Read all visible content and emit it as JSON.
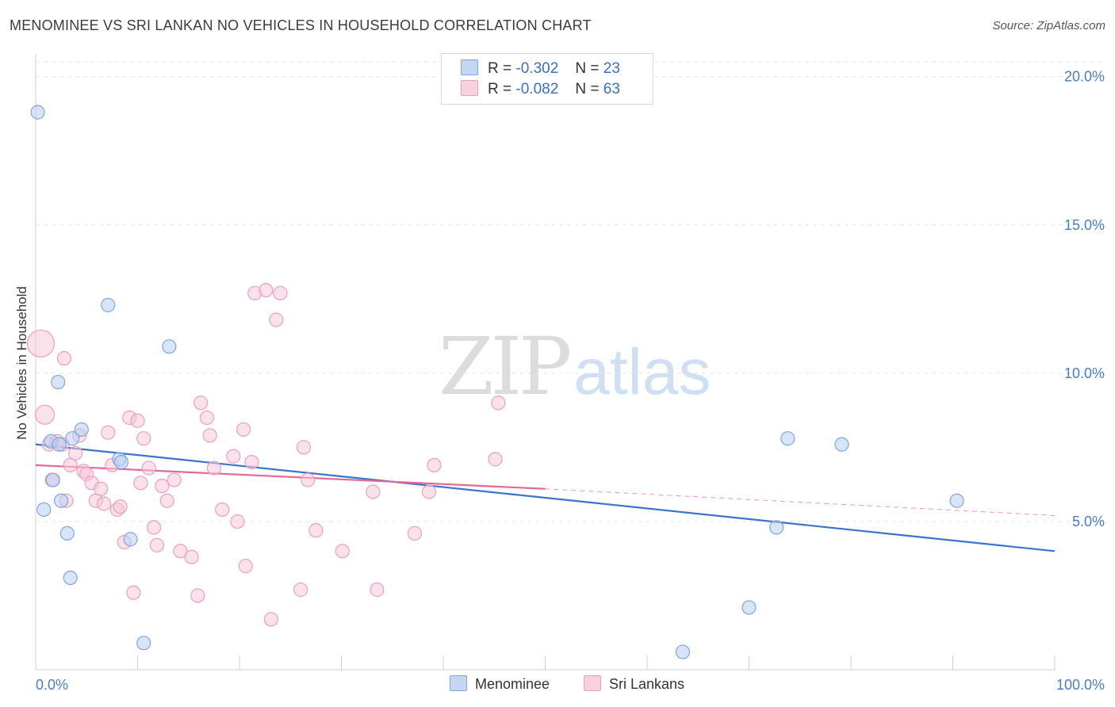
{
  "header": {
    "title": "MENOMINEE VS SRI LANKAN NO VEHICLES IN HOUSEHOLD CORRELATION CHART",
    "source": "Source: ZipAtlas.com"
  },
  "watermark": {
    "zip": "ZIP",
    "atlas": "atlas"
  },
  "legend": {
    "rows": [
      {
        "r_label": "R =",
        "r_value": "-0.302",
        "n_label": "N =",
        "n_value": "23"
      },
      {
        "r_label": "R =",
        "r_value": "-0.082",
        "n_label": "N =",
        "n_value": "63"
      }
    ]
  },
  "colors": {
    "menominee_fill": "#b8d0f2",
    "menominee_stroke": "#7fa6dc",
    "menominee_line": "#3a74d0",
    "srilankan_fill": "#f8c8d8",
    "srilankan_stroke": "#eba0ba",
    "srilankan_line": "#e46a94",
    "tick_color": "#4a7cc7",
    "grid": "#e3e3e3"
  },
  "chart_data": {
    "type": "scatter",
    "title": "MENOMINEE VS SRI LANKAN NO VEHICLES IN HOUSEHOLD CORRELATION CHART",
    "xlabel": "",
    "ylabel": "No Vehicles in Household",
    "xlim": [
      0,
      100
    ],
    "ylim": [
      0,
      20.5
    ],
    "x_tick_labels": [
      "0.0%",
      "100.0%"
    ],
    "y_ticks": [
      5,
      10,
      15,
      20
    ],
    "y_tick_labels": [
      "5.0%",
      "10.0%",
      "15.0%",
      "20.0%"
    ],
    "grid": true,
    "legend_position": "bottom",
    "series": [
      {
        "name": "Menominee",
        "points": [
          [
            0.2,
            18.8
          ],
          [
            0.8,
            5.4
          ],
          [
            1.5,
            7.7
          ],
          [
            1.7,
            6.4
          ],
          [
            2.2,
            9.7
          ],
          [
            2.5,
            5.7
          ],
          [
            3.1,
            4.6
          ],
          [
            3.4,
            3.1
          ],
          [
            3.6,
            7.8
          ],
          [
            4.5,
            8.1
          ],
          [
            7.1,
            12.3
          ],
          [
            8.2,
            7.1
          ],
          [
            8.4,
            7.0
          ],
          [
            9.3,
            4.4
          ],
          [
            10.6,
            0.9
          ],
          [
            13.1,
            10.9
          ],
          [
            73.8,
            7.8
          ],
          [
            79.1,
            7.6
          ],
          [
            90.4,
            5.7
          ],
          [
            72.7,
            4.8
          ],
          [
            70.0,
            2.1
          ],
          [
            63.5,
            0.6
          ],
          [
            2.3,
            7.6
          ]
        ],
        "trend": {
          "x": [
            0,
            100
          ],
          "y": [
            7.6,
            4.0
          ]
        }
      },
      {
        "name": "Sri Lankans",
        "points": [
          [
            0.5,
            11.0
          ],
          [
            0.9,
            8.6
          ],
          [
            1.3,
            7.6
          ],
          [
            1.6,
            6.4
          ],
          [
            2.1,
            7.7
          ],
          [
            2.6,
            7.6
          ],
          [
            2.8,
            10.5
          ],
          [
            3.0,
            5.7
          ],
          [
            3.4,
            6.9
          ],
          [
            3.9,
            7.3
          ],
          [
            4.3,
            7.9
          ],
          [
            4.7,
            6.7
          ],
          [
            5.0,
            6.6
          ],
          [
            5.5,
            6.3
          ],
          [
            5.9,
            5.7
          ],
          [
            6.4,
            6.1
          ],
          [
            6.7,
            5.6
          ],
          [
            7.1,
            8.0
          ],
          [
            7.5,
            6.9
          ],
          [
            8.0,
            5.4
          ],
          [
            8.3,
            5.5
          ],
          [
            8.7,
            4.3
          ],
          [
            9.2,
            8.5
          ],
          [
            9.6,
            2.6
          ],
          [
            10.0,
            8.4
          ],
          [
            10.3,
            6.3
          ],
          [
            10.6,
            7.8
          ],
          [
            11.1,
            6.8
          ],
          [
            11.6,
            4.8
          ],
          [
            11.9,
            4.2
          ],
          [
            12.4,
            6.2
          ],
          [
            12.9,
            5.7
          ],
          [
            13.6,
            6.4
          ],
          [
            14.2,
            4.0
          ],
          [
            15.3,
            3.8
          ],
          [
            15.9,
            2.5
          ],
          [
            16.2,
            9.0
          ],
          [
            16.8,
            8.5
          ],
          [
            17.1,
            7.9
          ],
          [
            17.5,
            6.8
          ],
          [
            18.3,
            5.4
          ],
          [
            19.4,
            7.2
          ],
          [
            19.8,
            5.0
          ],
          [
            20.4,
            8.1
          ],
          [
            20.6,
            3.5
          ],
          [
            21.2,
            7.0
          ],
          [
            21.5,
            12.7
          ],
          [
            22.6,
            12.8
          ],
          [
            23.1,
            1.7
          ],
          [
            23.6,
            11.8
          ],
          [
            24.0,
            12.7
          ],
          [
            26.0,
            2.7
          ],
          [
            26.3,
            7.5
          ],
          [
            26.7,
            6.4
          ],
          [
            27.5,
            4.7
          ],
          [
            30.1,
            4.0
          ],
          [
            33.1,
            6.0
          ],
          [
            33.5,
            2.7
          ],
          [
            37.2,
            4.6
          ],
          [
            38.6,
            6.0
          ],
          [
            39.1,
            6.9
          ],
          [
            45.4,
            9.0
          ],
          [
            45.1,
            7.1
          ]
        ],
        "trend": {
          "x": [
            0,
            50
          ],
          "y": [
            6.9,
            6.1
          ],
          "dashed_x": [
            50,
            100
          ],
          "dashed_y": [
            6.1,
            5.2
          ]
        }
      }
    ]
  },
  "bottom_legend": {
    "items": [
      "Menominee",
      "Sri Lankans"
    ]
  }
}
